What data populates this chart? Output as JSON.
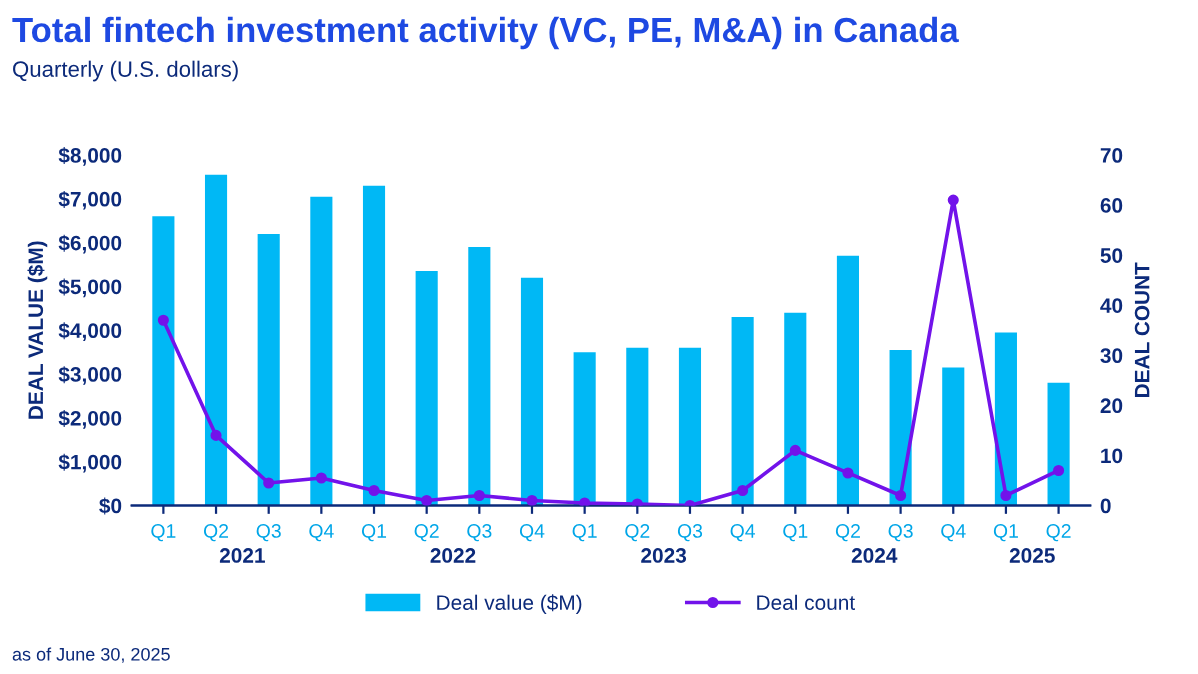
{
  "chart_data": {
    "type": "bar",
    "title": "Total fintech investment activity (VC, PE, M&A) in Canada",
    "subtitle": "Quarterly (U.S. dollars)",
    "ylabel": "DEAL VALUE ($M)",
    "y2label": "DEAL COUNT",
    "categories": [
      "Q1",
      "Q2",
      "Q3",
      "Q4",
      "Q1",
      "Q2",
      "Q3",
      "Q4",
      "Q1",
      "Q2",
      "Q3",
      "Q4",
      "Q1",
      "Q2",
      "Q3",
      "Q4",
      "Q1",
      "Q2"
    ],
    "series": [
      {
        "name": "Deal value ($M)",
        "color": "#00b8f5",
        "values": [
          6600,
          7550,
          6200,
          7050,
          7300,
          5350,
          5900,
          5200,
          3500,
          3600,
          3600,
          4300,
          4400,
          5700,
          3550,
          3150,
          3950,
          2800
        ]
      },
      {
        "name": "Deal count",
        "type": "line",
        "axis": "y2",
        "color": "#7213ea",
        "marker": "circle",
        "values": [
          37,
          14,
          4.5,
          5.5,
          3,
          1,
          2,
          1,
          0.5,
          0.3,
          0,
          3,
          11,
          6.5,
          2,
          61,
          2,
          7
        ]
      }
    ],
    "ylim": [
      0,
      8000
    ],
    "yticks": [
      {
        "value": 0,
        "label": "$0"
      },
      {
        "value": 1000,
        "label": "$1,000"
      },
      {
        "value": 2000,
        "label": "$2,000"
      },
      {
        "value": 3000,
        "label": "$3,000"
      },
      {
        "value": 4000,
        "label": "$4,000"
      },
      {
        "value": 5000,
        "label": "$5,000"
      },
      {
        "value": 6000,
        "label": "$6,000"
      },
      {
        "value": 7000,
        "label": "$7,000"
      },
      {
        "value": 8000,
        "label": "$8,000"
      }
    ],
    "y2lim": [
      0,
      70
    ],
    "y2ticks": [
      0,
      10,
      20,
      30,
      40,
      50,
      60,
      70
    ],
    "grid": false,
    "legend": "bottom",
    "annotations": [
      "2021",
      "2022",
      "2023",
      "2024",
      "2025",
      "as of June 30, 2025"
    ]
  }
}
